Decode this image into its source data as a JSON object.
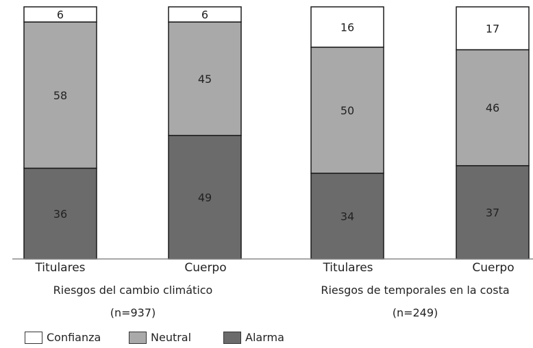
{
  "chart_data": {
    "type": "bar",
    "stacked": true,
    "categories": [
      "Titulares",
      "Cuerpo",
      "Titulares",
      "Cuerpo"
    ],
    "groups": [
      {
        "label": "Riesgos del cambio climático",
        "n": "(n=937)",
        "categories": [
          0,
          1
        ]
      },
      {
        "label": "Riesgos de temporales en la costa",
        "n": "(n=249)",
        "categories": [
          2,
          3
        ]
      }
    ],
    "series": [
      {
        "name": "Alarma",
        "values": [
          36,
          49,
          34,
          37
        ],
        "color": "#6b6b6b"
      },
      {
        "name": "Neutral",
        "values": [
          58,
          45,
          50,
          46
        ],
        "color": "#a9a9a9"
      },
      {
        "name": "Confianza",
        "values": [
          6,
          6,
          16,
          17
        ],
        "color": "#ffffff"
      }
    ],
    "ylim": [
      0,
      100
    ],
    "grid": false,
    "legend_position": "bottom-left"
  }
}
